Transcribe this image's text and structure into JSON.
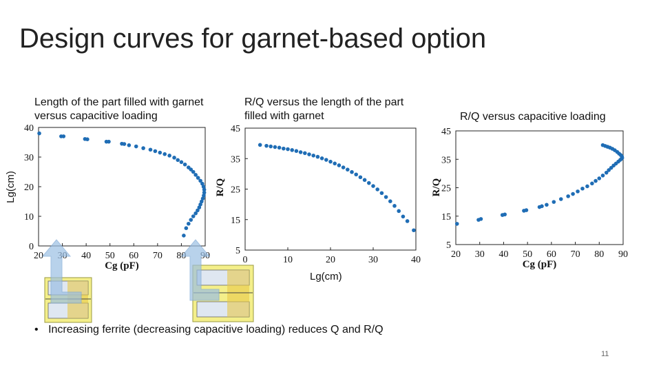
{
  "slide": {
    "title": "Design curves for garnet-based option",
    "bullet": "Increasing ferrite (decreasing capacitive loading) reduces Q and R/Q",
    "bullet_marker": "•",
    "page_number": "11",
    "accent_color": "#1f6db5"
  },
  "captions": {
    "c1": "Length of the part filled with garnet\nversus capacitive loading",
    "c2": "R/Q versus the  length of the part\nfilled with garnet",
    "c3": "R/Q versus capacitive loading"
  },
  "units": {
    "lg_left": "Lg(cm)",
    "lg_bottom": "Lg(cm)"
  },
  "chart_data": [
    {
      "type": "scatter",
      "xlabel": "Cg (pF)",
      "ylabel": "",
      "xlim": [
        20,
        90
      ],
      "ylim": [
        0,
        40
      ],
      "xticks": [
        20,
        30,
        40,
        50,
        60,
        70,
        80,
        90
      ],
      "yticks": [
        0,
        10,
        20,
        30,
        40
      ],
      "color": "#1f6db5",
      "x": [
        20.3,
        29.5,
        30.5,
        39.5,
        40.5,
        48.5,
        49.5,
        55,
        56,
        58,
        61,
        64,
        67,
        69,
        71,
        73,
        75,
        77,
        78.5,
        80,
        81.5,
        83,
        84,
        85,
        86,
        87,
        88,
        88.8,
        89.3,
        89.6,
        89.6,
        89.4,
        89,
        88.5,
        88,
        87.5,
        86.8,
        86,
        85,
        84,
        83,
        82,
        81
      ],
      "y": [
        38,
        37,
        37,
        36.1,
        36,
        35.2,
        35.2,
        34.5,
        34.4,
        34,
        33.6,
        33,
        32.5,
        32,
        31.5,
        31,
        30.5,
        29.8,
        29,
        28.3,
        27.5,
        26.5,
        25.8,
        25,
        24,
        23,
        22,
        21,
        20,
        19,
        18,
        17,
        16,
        15,
        14,
        13,
        12,
        11,
        10,
        8.8,
        7.5,
        6,
        3.5
      ]
    },
    {
      "type": "scatter",
      "xlabel": "",
      "ylabel": "R/Q",
      "xlim": [
        0,
        40
      ],
      "ylim": [
        5,
        45
      ],
      "xticks": [
        0,
        10,
        20,
        30,
        40
      ],
      "yticks": [
        5,
        15,
        25,
        35,
        45
      ],
      "color": "#1f6db5",
      "x": [
        3.5,
        5,
        6,
        7,
        8,
        9,
        10,
        11,
        12,
        13,
        14,
        15,
        16,
        17,
        18,
        19,
        20,
        21,
        22,
        23,
        24,
        25,
        26,
        27,
        28,
        29,
        30,
        31,
        32,
        33,
        34,
        35,
        36,
        37,
        38,
        39.5
      ],
      "y": [
        39.5,
        39.2,
        39,
        38.8,
        38.6,
        38.3,
        38.1,
        37.8,
        37.5,
        37.1,
        36.8,
        36.4,
        36,
        35.6,
        35.1,
        34.6,
        34,
        33.4,
        32.8,
        32.1,
        31.4,
        30.6,
        29.8,
        28.9,
        28,
        27,
        26,
        24.9,
        23.7,
        22.4,
        21,
        19.5,
        17.8,
        16,
        14.5,
        11.5
      ]
    },
    {
      "type": "scatter",
      "xlabel": "Cg (pF)",
      "ylabel": "R/Q",
      "xlim": [
        20,
        90
      ],
      "ylim": [
        5,
        45
      ],
      "xticks": [
        20,
        30,
        40,
        50,
        60,
        70,
        80,
        90
      ],
      "yticks": [
        5,
        15,
        25,
        35,
        45
      ],
      "color": "#1f6db5",
      "x": [
        20.5,
        29.5,
        30.5,
        39.5,
        40.5,
        48.5,
        49.5,
        55,
        56,
        58,
        61,
        64,
        67,
        69,
        71,
        73,
        75,
        77,
        78.5,
        80,
        81.5,
        83,
        84,
        85,
        86,
        87,
        88,
        88.8,
        89.3,
        89.6,
        89.5,
        89,
        88.3,
        87.5,
        86.5,
        85.5,
        84.5,
        83.5,
        82.5,
        81.5
      ],
      "y": [
        12.3,
        13.7,
        14,
        15.4,
        15.6,
        16.9,
        17.1,
        18.2,
        18.5,
        19,
        20,
        21,
        22,
        22.8,
        23.7,
        24.7,
        25.5,
        26.5,
        27.4,
        28.3,
        29.3,
        30.3,
        31.2,
        32,
        32.8,
        33.5,
        34.2,
        34.8,
        35.2,
        35.5,
        36,
        36.5,
        37,
        37.6,
        38.2,
        38.7,
        39.1,
        39.4,
        39.7,
        40
      ]
    }
  ]
}
